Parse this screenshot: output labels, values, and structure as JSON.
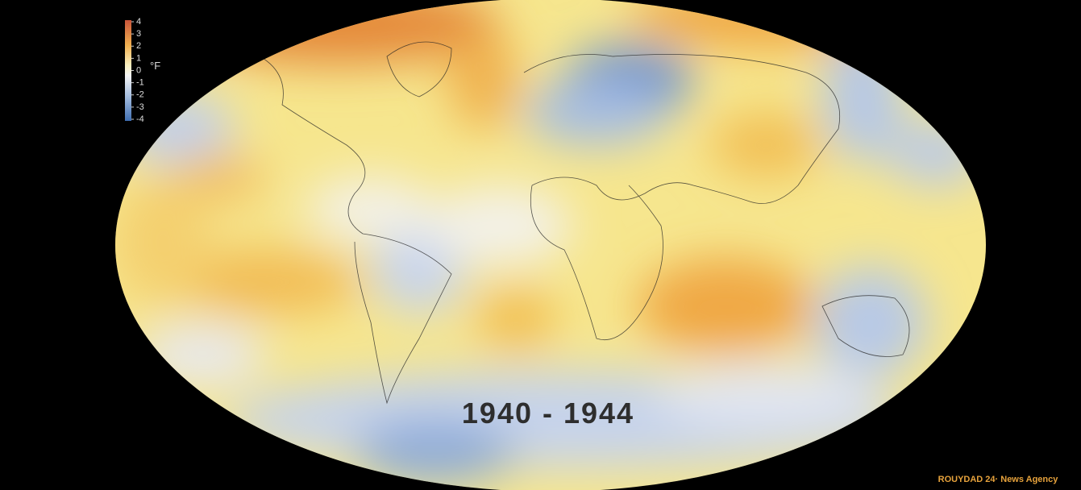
{
  "legend": {
    "ticks": [
      4,
      3,
      2,
      1,
      0,
      -1,
      -2,
      -3,
      -4
    ],
    "unit": "°F"
  },
  "period_label": "1940 - 1944",
  "watermark": "ROUYDAD 24· News Agency"
}
